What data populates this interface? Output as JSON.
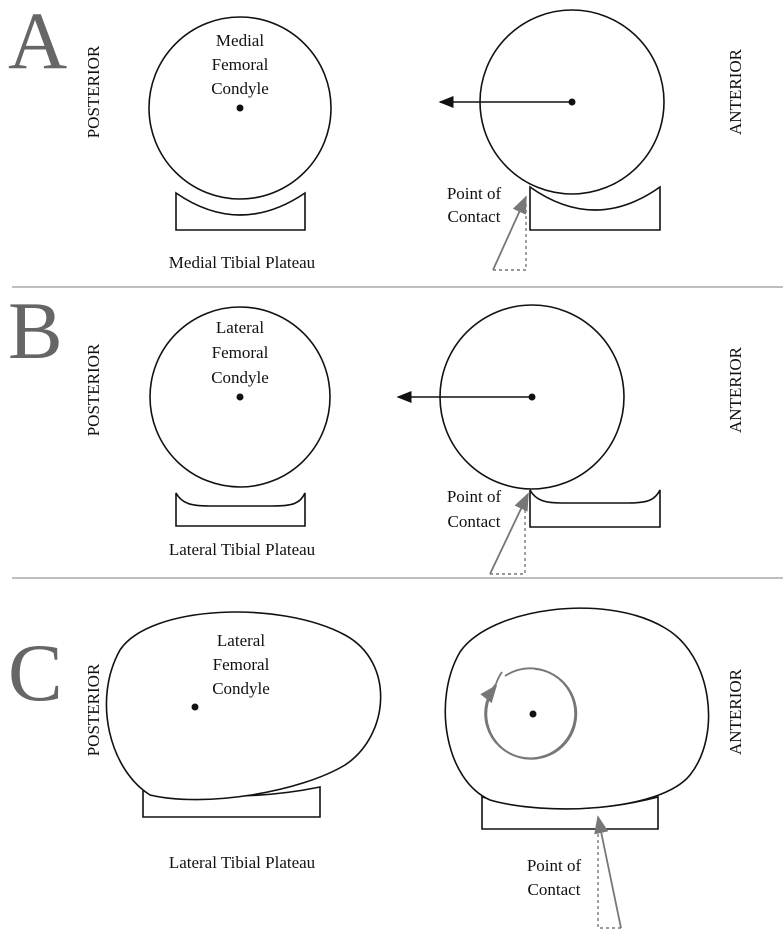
{
  "panels": [
    {
      "letter": "A",
      "posterior": "POSTERIOR",
      "anterior": "ANTERIOR",
      "condyle_label": [
        "Medial",
        "Femoral",
        "Condyle"
      ],
      "plateau_label": "Medial Tibial Plateau",
      "contact_label": [
        "Point of",
        "Contact"
      ]
    },
    {
      "letter": "B",
      "posterior": "POSTERIOR",
      "anterior": "ANTERIOR",
      "condyle_label": [
        "Lateral",
        "Femoral",
        "Condyle"
      ],
      "plateau_label": "Lateral Tibial Plateau",
      "contact_label": [
        "Point of",
        "Contact"
      ]
    },
    {
      "letter": "C",
      "posterior": "POSTERIOR",
      "anterior": "ANTERIOR",
      "condyle_label": [
        "Lateral",
        "Femoral",
        "Condyle"
      ],
      "plateau_label": "Lateral Tibial Plateau",
      "contact_label": [
        "Point of",
        "Contact"
      ]
    }
  ]
}
